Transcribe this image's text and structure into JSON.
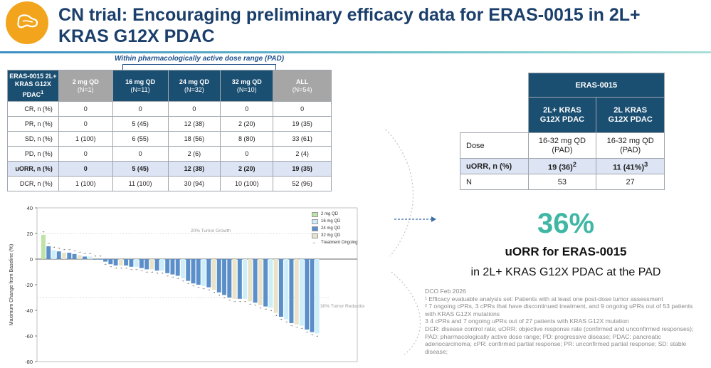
{
  "header": {
    "title": "CN trial: Encouraging preliminary efficacy data for ERAS-0015 in 2L+ KRAS G12X PDAC"
  },
  "pad_label": "Within pharmacologically active dose range (PAD)",
  "left_table": {
    "columns": [
      {
        "main": "ERAS-0015 2L+ KRAS G12X PDAC",
        "sup": "1",
        "sub": ""
      },
      {
        "main": "2 mg QD",
        "sub": "(N=1)"
      },
      {
        "main": "16 mg QD",
        "sub": "(N=11)"
      },
      {
        "main": "24 mg QD",
        "sub": "(N=32)"
      },
      {
        "main": "32 mg QD",
        "sub": "(N=10)"
      },
      {
        "main": "ALL",
        "sub": "(N=54)"
      }
    ],
    "rows": [
      [
        "CR, n (%)",
        "0",
        "0",
        "0",
        "0",
        "0"
      ],
      [
        "PR, n (%)",
        "0",
        "5 (45)",
        "12 (38)",
        "2 (20)",
        "19 (35)"
      ],
      [
        "SD, n (%)",
        "1 (100)",
        "6 (55)",
        "18 (56)",
        "8 (80)",
        "33 (61)"
      ],
      [
        "PD, n (%)",
        "0",
        "0",
        "2 (6)",
        "0",
        "2 (4)"
      ],
      [
        "uORR, n (%)",
        "0",
        "5 (45)",
        "12 (38)",
        "2 (20)",
        "19 (35)"
      ],
      [
        "DCR, n (%)",
        "1 (100)",
        "11 (100)",
        "30 (94)",
        "10 (100)",
        "52 (96)"
      ]
    ],
    "highlight_row": 4
  },
  "right_table": {
    "group_header": "ERAS-0015",
    "col1": "2L+ KRAS G12X PDAC",
    "col2": "2L KRAS G12X PDAC",
    "dose_label": "Dose",
    "dose_1": "16-32 mg QD (PAD)",
    "dose_2": "16-32 mg QD (PAD)",
    "uorr_label": "uORR, n (%)",
    "uorr_1": "19 (36)",
    "uorr_1_sup": "2",
    "uorr_2": "11 (41%)",
    "uorr_2_sup": "3",
    "n_label": "N",
    "n_1": "53",
    "n_2": "27"
  },
  "stat": {
    "pct": "36%",
    "line1": "uORR for ERAS-0015",
    "line2": "in 2L+ KRAS G12X PDAC at the PAD"
  },
  "notes": [
    "DCO Feb 2026",
    "¹ Efficacy evaluable analysis set: Patients with at least one post-dose tumor assessment",
    "² 7 ongoing cPRs, 3 cPRs that have discontinued treatment, and 9 ongoing uPRs out of 53 patients with KRAS G12X mutations",
    "3 4 cPRs and 7 ongoing uPRs out of 27 patients with KRAS G12X mutation",
    "DCR: disease control rate; uORR: objective response rate (confirmed and unconfirmed responses); PAD: pharmacologically active dose range; PD: progressive disease; PDAC: pancreatic adenocarcinoma; cPR: confirmed partial response; PR: unconfirmed partial response; SD: stable disease;"
  ],
  "colors": {
    "navy": "#1b3f6b",
    "table_header": "#1b4f72",
    "accent_teal": "#3fb7a4",
    "logo_orange": "#f2a51c",
    "dose_2mg": "#bfe3a6",
    "dose_16mg": "#cdeef8",
    "dose_24mg": "#5b8fc9",
    "dose_32mg": "#e9e3c9"
  },
  "chart_data": {
    "type": "bar",
    "title": "",
    "xlabel": "",
    "ylabel": "Maximum Change from Baseline (%)",
    "ylim": [
      -80,
      40
    ],
    "yticks": [
      40,
      20,
      0,
      -20,
      -40,
      -60,
      -80
    ],
    "reference_lines": [
      {
        "value": 20,
        "label": "20% Tumor Growth"
      },
      {
        "value": -30,
        "label": "30% Tumor Reduction"
      }
    ],
    "legend": [
      {
        "label": "2 mg QD",
        "color": "#bfe3a6"
      },
      {
        "label": "16 mg QD",
        "color": "#cdeef8"
      },
      {
        "label": "24 mg QD",
        "color": "#5b8fc9"
      },
      {
        "label": "32 mg QD",
        "color": "#e9e3c9"
      },
      {
        "label": "Treatment Ongoing",
        "marker": "arrow"
      }
    ],
    "series": [
      {
        "name": "2 mg QD",
        "dose": 2,
        "values": [
          [
            0,
            19
          ]
        ]
      },
      {
        "name": "16 mg QD",
        "dose": 16,
        "values": [
          [
            2,
            7
          ],
          [
            9,
            2
          ],
          [
            18,
            -6
          ],
          [
            23,
            -9
          ],
          [
            27,
            -15
          ],
          [
            31,
            -21
          ],
          [
            39,
            -31
          ],
          [
            44,
            -38
          ],
          [
            47,
            -47
          ],
          [
            50,
            -52
          ],
          [
            53,
            -58
          ]
        ]
      },
      {
        "name": "24 mg QD",
        "dose": 24,
        "values": [
          [
            1,
            10
          ],
          [
            3,
            6
          ],
          [
            5,
            5
          ],
          [
            6,
            4
          ],
          [
            8,
            2
          ],
          [
            10,
            0
          ],
          [
            11,
            0
          ],
          [
            12,
            -2
          ],
          [
            13,
            -4
          ],
          [
            14,
            -5
          ],
          [
            16,
            -5
          ],
          [
            17,
            -6
          ],
          [
            19,
            -7
          ],
          [
            20,
            -8
          ],
          [
            22,
            -9
          ],
          [
            24,
            -11
          ],
          [
            25,
            -12
          ],
          [
            26,
            -13
          ],
          [
            28,
            -17
          ],
          [
            29,
            -19
          ],
          [
            30,
            -20
          ],
          [
            32,
            -22
          ],
          [
            34,
            -26
          ],
          [
            35,
            -28
          ],
          [
            36,
            -30
          ],
          [
            38,
            -31
          ],
          [
            41,
            -34
          ],
          [
            43,
            -37
          ],
          [
            46,
            -45
          ],
          [
            48,
            -50
          ],
          [
            51,
            -55
          ],
          [
            52,
            -57
          ]
        ]
      },
      {
        "name": "32 mg QD",
        "dose": 32,
        "values": [
          [
            4,
            5
          ],
          [
            7,
            3
          ],
          [
            15,
            -5
          ],
          [
            21,
            -8
          ],
          [
            33,
            -24
          ],
          [
            37,
            -31
          ],
          [
            40,
            -33
          ],
          [
            42,
            -36
          ],
          [
            45,
            -42
          ],
          [
            49,
            -51
          ]
        ]
      }
    ],
    "bar_count": 54
  }
}
